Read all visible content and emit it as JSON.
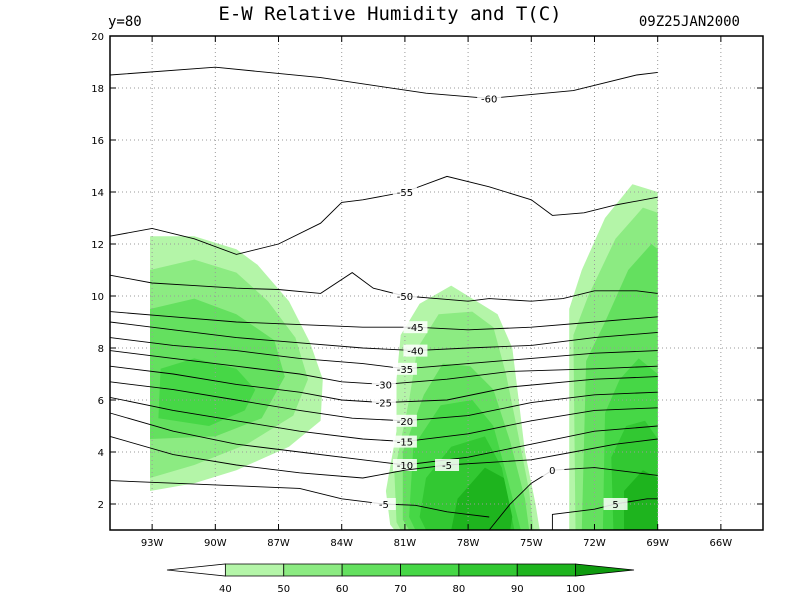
{
  "chart_data": {
    "type": "contour",
    "title": "E-W  Relative Humidity and T(C)",
    "slice_label": "y=80",
    "time_label": "09Z25JAN2000",
    "x_axis": {
      "range": [
        -95,
        -64
      ],
      "ticks": [
        -93,
        -90,
        -87,
        -84,
        -81,
        -78,
        -75,
        -72,
        -69,
        -66
      ],
      "tick_labels": [
        "93W",
        "90W",
        "87W",
        "84W",
        "81W",
        "78W",
        "75W",
        "72W",
        "69W",
        "66W"
      ]
    },
    "y_axis": {
      "range": [
        1,
        20
      ],
      "ticks": [
        2,
        4,
        6,
        8,
        10,
        12,
        14,
        16,
        18,
        20
      ],
      "tick_labels": [
        "2",
        "4",
        "6",
        "8",
        "10",
        "12",
        "14",
        "16",
        "18",
        "20"
      ]
    },
    "grid": "dotted",
    "shaded_field": {
      "name": "Relative Humidity",
      "levels": [
        40,
        50,
        60,
        70,
        80,
        90,
        100
      ],
      "colors": [
        "#ffffff",
        "#b4f5a8",
        "#8ceb82",
        "#64e05f",
        "#46d746",
        "#32c832",
        "#1eb41e",
        "#0f9b0f"
      ],
      "colorbar_labels": [
        "40",
        "50",
        "60",
        "70",
        "80",
        "90",
        "100"
      ]
    },
    "temperature_contours": [
      {
        "label": "-60",
        "points": [
          [
            -95,
            18.5
          ],
          [
            -90,
            18.8
          ],
          [
            -85,
            18.4
          ],
          [
            -80,
            17.8
          ],
          [
            -77,
            17.6
          ],
          [
            -73,
            17.9
          ],
          [
            -70,
            18.5
          ],
          [
            -69,
            18.6
          ]
        ]
      },
      {
        "label": "-55",
        "points": [
          [
            -95,
            12.3
          ],
          [
            -93,
            12.6
          ],
          [
            -91,
            12.2
          ],
          [
            -89,
            11.6
          ],
          [
            -87,
            12.0
          ],
          [
            -85,
            12.8
          ],
          [
            -84,
            13.6
          ],
          [
            -83,
            13.7
          ],
          [
            -81,
            14.0
          ],
          [
            -79,
            14.6
          ],
          [
            -77,
            14.2
          ],
          [
            -75,
            13.7
          ],
          [
            -74,
            13.1
          ],
          [
            -72.5,
            13.2
          ],
          [
            -71,
            13.5
          ],
          [
            -69,
            13.8
          ]
        ]
      },
      {
        "label": "-50",
        "points": [
          [
            -95,
            10.8
          ],
          [
            -93,
            10.5
          ],
          [
            -91,
            10.4
          ],
          [
            -89,
            10.3
          ],
          [
            -87,
            10.25
          ],
          [
            -85,
            10.1
          ],
          [
            -83.5,
            10.9
          ],
          [
            -82.5,
            10.3
          ],
          [
            -81,
            10.0
          ],
          [
            -79.5,
            9.9
          ],
          [
            -78,
            9.8
          ],
          [
            -77,
            9.9
          ],
          [
            -75,
            9.8
          ],
          [
            -73.5,
            9.9
          ],
          [
            -72,
            10.2
          ],
          [
            -70,
            10.2
          ],
          [
            -69,
            10.1
          ]
        ]
      },
      {
        "label": "-45",
        "points": [
          [
            -95,
            9.4
          ],
          [
            -92,
            9.2
          ],
          [
            -89,
            9.0
          ],
          [
            -86,
            8.9
          ],
          [
            -83,
            8.8
          ],
          [
            -80.5,
            8.8
          ],
          [
            -78,
            8.7
          ],
          [
            -75,
            8.8
          ],
          [
            -72,
            9.0
          ],
          [
            -69,
            9.2
          ]
        ]
      },
      {
        "label": "-40",
        "points": [
          [
            -95,
            9.0
          ],
          [
            -92,
            8.7
          ],
          [
            -89,
            8.4
          ],
          [
            -86,
            8.2
          ],
          [
            -83,
            8.0
          ],
          [
            -80.5,
            7.9
          ],
          [
            -78,
            8.0
          ],
          [
            -75,
            8.1
          ],
          [
            -72,
            8.4
          ],
          [
            -69,
            8.6
          ]
        ]
      },
      {
        "label": "-35",
        "points": [
          [
            -95,
            8.4
          ],
          [
            -92,
            8.1
          ],
          [
            -89,
            7.9
          ],
          [
            -86,
            7.6
          ],
          [
            -83,
            7.4
          ],
          [
            -81,
            7.2
          ],
          [
            -78,
            7.4
          ],
          [
            -75,
            7.6
          ],
          [
            -72,
            7.8
          ],
          [
            -69,
            7.9
          ]
        ]
      },
      {
        "label": "-30",
        "points": [
          [
            -95,
            7.9
          ],
          [
            -92,
            7.6
          ],
          [
            -89,
            7.3
          ],
          [
            -86,
            7.0
          ],
          [
            -84,
            6.7
          ],
          [
            -82,
            6.6
          ],
          [
            -79,
            6.8
          ],
          [
            -76,
            7.1
          ],
          [
            -72,
            7.2
          ],
          [
            -69,
            7.3
          ]
        ]
      },
      {
        "label": "-25",
        "points": [
          [
            -95,
            7.3
          ],
          [
            -92,
            7.0
          ],
          [
            -89,
            6.6
          ],
          [
            -86,
            6.3
          ],
          [
            -84,
            6.0
          ],
          [
            -82,
            5.9
          ],
          [
            -79,
            6.0
          ],
          [
            -76,
            6.5
          ],
          [
            -72,
            6.8
          ],
          [
            -69,
            6.9
          ]
        ]
      },
      {
        "label": "-20",
        "points": [
          [
            -95,
            6.7
          ],
          [
            -92,
            6.4
          ],
          [
            -89,
            6.0
          ],
          [
            -86,
            5.6
          ],
          [
            -83.5,
            5.3
          ],
          [
            -81,
            5.2
          ],
          [
            -78,
            5.4
          ],
          [
            -75,
            5.9
          ],
          [
            -72,
            6.2
          ],
          [
            -69,
            6.3
          ]
        ]
      },
      {
        "label": "-15",
        "points": [
          [
            -95,
            6.1
          ],
          [
            -92,
            5.6
          ],
          [
            -89,
            5.2
          ],
          [
            -86,
            4.8
          ],
          [
            -83,
            4.5
          ],
          [
            -81,
            4.4
          ],
          [
            -78,
            4.7
          ],
          [
            -75,
            5.2
          ],
          [
            -72,
            5.6
          ],
          [
            -69,
            5.7
          ]
        ]
      },
      {
        "label": "-10",
        "points": [
          [
            -95,
            5.5
          ],
          [
            -92,
            4.8
          ],
          [
            -89,
            4.3
          ],
          [
            -86,
            4.0
          ],
          [
            -83,
            3.7
          ],
          [
            -81,
            3.5
          ],
          [
            -78,
            3.8
          ],
          [
            -75,
            4.3
          ],
          [
            -72,
            4.8
          ],
          [
            -69,
            5.0
          ]
        ]
      },
      {
        "label": "-5",
        "points": [
          [
            -95,
            4.6
          ],
          [
            -92,
            3.9
          ],
          [
            -89,
            3.5
          ],
          [
            -86,
            3.2
          ],
          [
            -83,
            3.0
          ],
          [
            -81,
            3.3
          ],
          [
            -79,
            3.5
          ],
          [
            -77,
            3.6
          ],
          [
            -75,
            3.7
          ],
          [
            -73,
            4.0
          ],
          [
            -71,
            4.3
          ],
          [
            -69,
            4.5
          ]
        ]
      },
      {
        "label": "-5",
        "points": [
          [
            -95,
            2.9
          ],
          [
            -92,
            2.8
          ],
          [
            -89,
            2.7
          ],
          [
            -86,
            2.6
          ],
          [
            -84,
            2.2
          ],
          [
            -82,
            2.0
          ],
          [
            -80.5,
            1.95
          ],
          [
            -79,
            1.7
          ],
          [
            -78,
            1.6
          ],
          [
            -77,
            1.5
          ]
        ]
      },
      {
        "label": "0",
        "points": [
          [
            -77,
            1.0
          ],
          [
            -76,
            2.0
          ],
          [
            -75,
            2.8
          ],
          [
            -74,
            3.3
          ],
          [
            -72,
            3.4
          ],
          [
            -70,
            3.2
          ],
          [
            -69,
            3.1
          ]
        ]
      },
      {
        "label": "5",
        "points": [
          [
            -74,
            1.0
          ],
          [
            -74,
            1.6
          ],
          [
            -72,
            1.8
          ],
          [
            -71,
            2.0
          ],
          [
            -69.5,
            2.2
          ],
          [
            -69,
            2.2
          ]
        ]
      }
    ]
  }
}
